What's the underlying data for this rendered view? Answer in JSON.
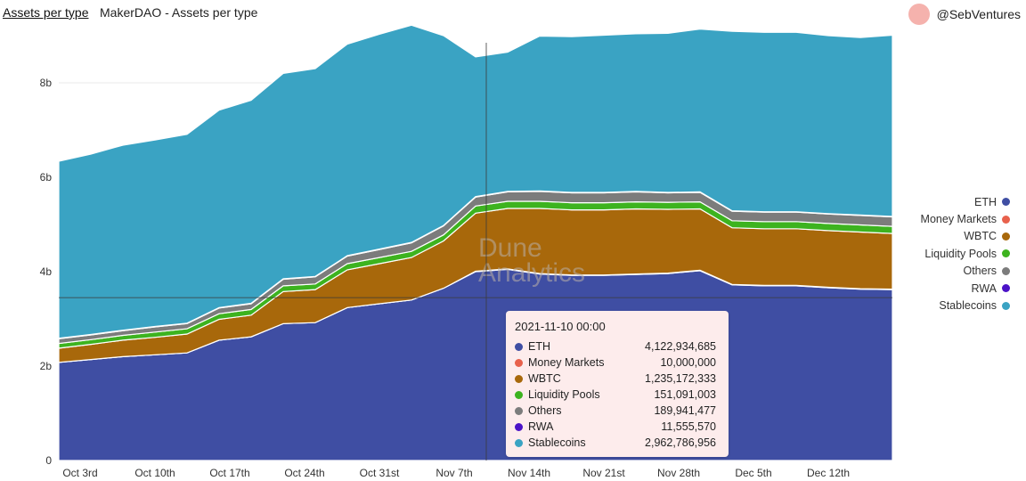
{
  "header": {
    "tab_title": "Assets per type",
    "subtitle": "MakerDAO - Assets per type",
    "author": "@SebVentures"
  },
  "watermark": {
    "line1": "Dune",
    "line2": "Analytics"
  },
  "legend": [
    {
      "name": "ETH",
      "color": "#3f4ea3"
    },
    {
      "name": "Money Markets",
      "color": "#e8614c"
    },
    {
      "name": "WBTC",
      "color": "#a8680b"
    },
    {
      "name": "Liquidity Pools",
      "color": "#3db31f"
    },
    {
      "name": "Others",
      "color": "#7c7c7c"
    },
    {
      "name": "RWA",
      "color": "#4b13c7"
    },
    {
      "name": "Stablecoins",
      "color": "#3aa3c3"
    }
  ],
  "tooltip": {
    "time": "2021-11-10 00:00",
    "rows": [
      {
        "name": "ETH",
        "value": "4,122,934,685",
        "color": "#3f4ea3"
      },
      {
        "name": "Money Markets",
        "value": "10,000,000",
        "color": "#e8614c"
      },
      {
        "name": "WBTC",
        "value": "1,235,172,333",
        "color": "#a8680b"
      },
      {
        "name": "Liquidity Pools",
        "value": "151,091,003",
        "color": "#3db31f"
      },
      {
        "name": "Others",
        "value": "189,941,477",
        "color": "#7c7c7c"
      },
      {
        "name": "RWA",
        "value": "11,555,570",
        "color": "#4b13c7"
      },
      {
        "name": "Stablecoins",
        "value": "2,962,786,956",
        "color": "#3aa3c3"
      }
    ]
  },
  "chart_data": {
    "type": "area",
    "stacked": true,
    "title": "Assets per type",
    "subtitle": "MakerDAO - Assets per type",
    "ylim": [
      0,
      9000000000
    ],
    "y_ticks": [
      0,
      2000000000,
      4000000000,
      6000000000,
      8000000000
    ],
    "y_tick_labels": [
      "0",
      "2b",
      "4b",
      "6b",
      "8b"
    ],
    "x_tick_labels": [
      "Oct 3rd",
      "Oct 10th",
      "Oct 17th",
      "Oct 24th",
      "Oct 31st",
      "Nov 7th",
      "Nov 14th",
      "Nov 21st",
      "Nov 28th",
      "Dec 5th",
      "Dec 12th"
    ],
    "x_start": "2021-10-01",
    "x": [
      "2021-10-01",
      "2021-10-04",
      "2021-10-07",
      "2021-10-10",
      "2021-10-13",
      "2021-10-16",
      "2021-10-19",
      "2021-10-22",
      "2021-10-25",
      "2021-10-28",
      "2021-10-31",
      "2021-11-03",
      "2021-11-06",
      "2021-11-09",
      "2021-11-12",
      "2021-11-15",
      "2021-11-18",
      "2021-11-21",
      "2021-11-24",
      "2021-11-27",
      "2021-11-30",
      "2021-12-03",
      "2021-12-06",
      "2021-12-09",
      "2021-12-12",
      "2021-12-15",
      "2021-12-18"
    ],
    "grid": true,
    "legend_position": "right",
    "hover_x": "2021-11-10",
    "series": [
      {
        "name": "ETH",
        "color": "#3f4ea3",
        "values": [
          2.08,
          2.14,
          2.2,
          2.24,
          2.28,
          2.55,
          2.62,
          2.9,
          2.92,
          3.24,
          3.32,
          3.4,
          3.65,
          4.0,
          4.05,
          3.95,
          3.92,
          3.92,
          3.94,
          3.96,
          4.02,
          3.72,
          3.7,
          3.7,
          3.66,
          3.63,
          3.62
        ]
      },
      {
        "name": "Money Markets",
        "color": "#e8614c",
        "values": [
          0,
          0,
          0,
          0,
          0,
          0,
          0,
          0,
          0,
          0,
          0,
          0,
          0,
          0.01,
          0.01,
          0.01,
          0.01,
          0.01,
          0.01,
          0.01,
          0.01,
          0.01,
          0.01,
          0.01,
          0.01,
          0.01,
          0.01
        ]
      },
      {
        "name": "WBTC",
        "color": "#a8680b",
        "values": [
          0.3,
          0.32,
          0.35,
          0.37,
          0.4,
          0.44,
          0.46,
          0.68,
          0.7,
          0.8,
          0.85,
          0.9,
          1.0,
          1.23,
          1.28,
          1.38,
          1.38,
          1.38,
          1.38,
          1.35,
          1.3,
          1.2,
          1.2,
          1.2,
          1.2,
          1.2,
          1.18
        ]
      },
      {
        "name": "Liquidity Pools",
        "color": "#3db31f",
        "values": [
          0.1,
          0.1,
          0.1,
          0.11,
          0.11,
          0.12,
          0.12,
          0.12,
          0.12,
          0.13,
          0.13,
          0.13,
          0.13,
          0.15,
          0.15,
          0.15,
          0.15,
          0.15,
          0.15,
          0.15,
          0.15,
          0.15,
          0.15,
          0.15,
          0.15,
          0.15,
          0.15
        ]
      },
      {
        "name": "Others",
        "color": "#7c7c7c",
        "values": [
          0.1,
          0.1,
          0.1,
          0.11,
          0.11,
          0.12,
          0.12,
          0.14,
          0.15,
          0.16,
          0.17,
          0.18,
          0.19,
          0.19,
          0.2,
          0.21,
          0.21,
          0.21,
          0.21,
          0.2,
          0.2,
          0.2,
          0.2,
          0.2,
          0.2,
          0.2,
          0.2
        ]
      },
      {
        "name": "RWA",
        "color": "#4b13c7",
        "values": [
          0.01,
          0.01,
          0.01,
          0.01,
          0.01,
          0.01,
          0.01,
          0.01,
          0.01,
          0.01,
          0.01,
          0.01,
          0.01,
          0.01,
          0.01,
          0.01,
          0.01,
          0.01,
          0.01,
          0.01,
          0.01,
          0.01,
          0.01,
          0.01,
          0.01,
          0.01,
          0.01
        ]
      },
      {
        "name": "Stablecoins",
        "color": "#3aa3c3",
        "values": [
          3.75,
          3.82,
          3.92,
          3.95,
          4.0,
          4.18,
          4.3,
          4.35,
          4.4,
          4.48,
          4.55,
          4.6,
          4.02,
          2.96,
          2.95,
          3.28,
          3.3,
          3.33,
          3.34,
          3.37,
          3.45,
          3.8,
          3.8,
          3.8,
          3.77,
          3.76,
          3.84
        ]
      }
    ],
    "value_unit": "billions"
  }
}
